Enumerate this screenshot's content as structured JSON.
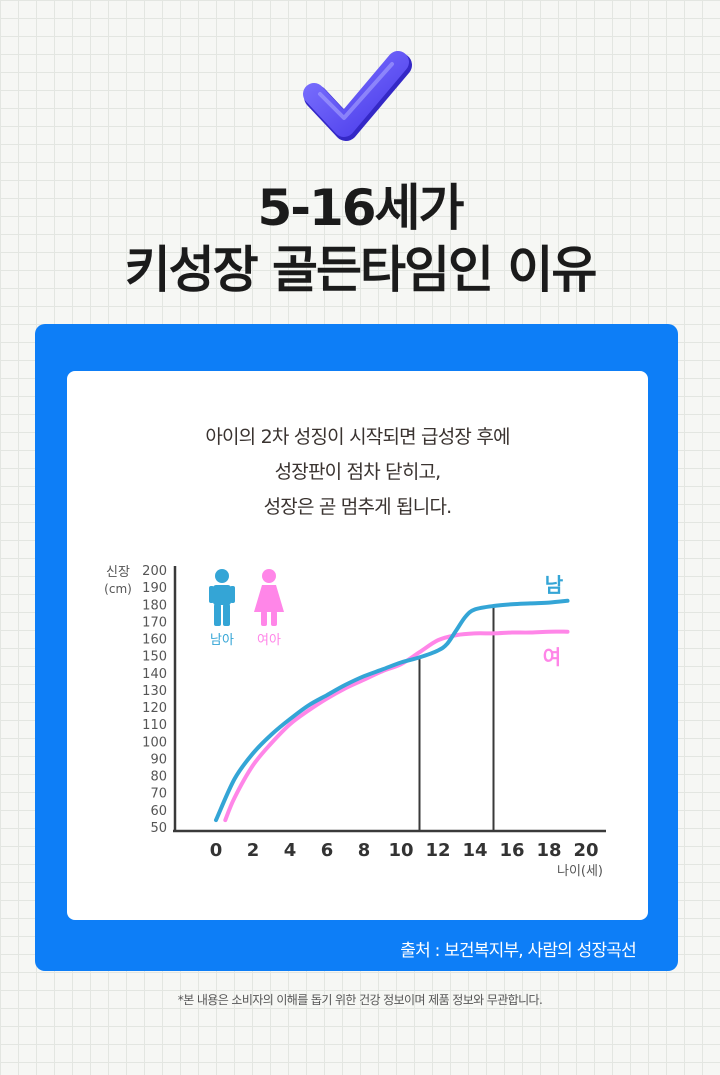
{
  "header": {
    "title_line1": "5-16세가",
    "title_line2": "키성장 골든타임인 이유"
  },
  "description": {
    "line1": "아이의 2차 성징이 시작되면 급성장 후에",
    "line2": "성장판이 점차 닫히고,",
    "line3": "성장은 곧 멈추게 됩니다."
  },
  "chart_data": {
    "type": "line",
    "ylabel": "신장",
    "ylabel_unit": "(cm)",
    "xlabel": "나이(세)",
    "xlim": [
      0,
      20
    ],
    "ylim": [
      50,
      200
    ],
    "x_ticks": [
      0,
      2,
      4,
      6,
      8,
      10,
      12,
      14,
      16,
      18,
      20
    ],
    "y_ticks": [
      200,
      190,
      180,
      170,
      160,
      150,
      140,
      130,
      120,
      110,
      100,
      90,
      80,
      70,
      60,
      50
    ],
    "legend": [
      {
        "label": "남아",
        "color": "#34a5d6",
        "icon": "boy-icon"
      },
      {
        "label": "여아",
        "color": "#ff86e8",
        "icon": "girl-icon"
      }
    ],
    "series": [
      {
        "name": "남",
        "color": "#34a5d6",
        "x": [
          0,
          1,
          2,
          3,
          4,
          5,
          6,
          7,
          8,
          9,
          10,
          11,
          12,
          12.5,
          13,
          13.5,
          14,
          15,
          16,
          17,
          18,
          19
        ],
        "y": [
          54,
          78,
          93,
          104,
          113,
          121,
          127,
          133,
          138,
          142,
          146,
          149,
          153,
          157,
          165,
          173,
          177,
          179,
          180,
          180.5,
          181,
          182
        ]
      },
      {
        "name": "여",
        "color": "#ff86e8",
        "x": [
          0.5,
          1,
          2,
          3,
          4,
          5,
          6,
          7,
          8,
          9,
          10,
          11,
          12,
          13,
          14,
          15,
          16,
          17,
          18,
          19
        ],
        "y": [
          54,
          67,
          86,
          99,
          110,
          118,
          125,
          131,
          136,
          141,
          145,
          152,
          159,
          162,
          163,
          163,
          163.5,
          163.5,
          164,
          164
        ]
      }
    ],
    "reference_lines_x": [
      11,
      15
    ]
  },
  "source": "출처 : 보건복지부, 사람의 성장곡선",
  "disclaimer": "*본 내용은 소비자의 이해를 돕기 위한 건강 정보이며 제품 정보와 무관합니다."
}
